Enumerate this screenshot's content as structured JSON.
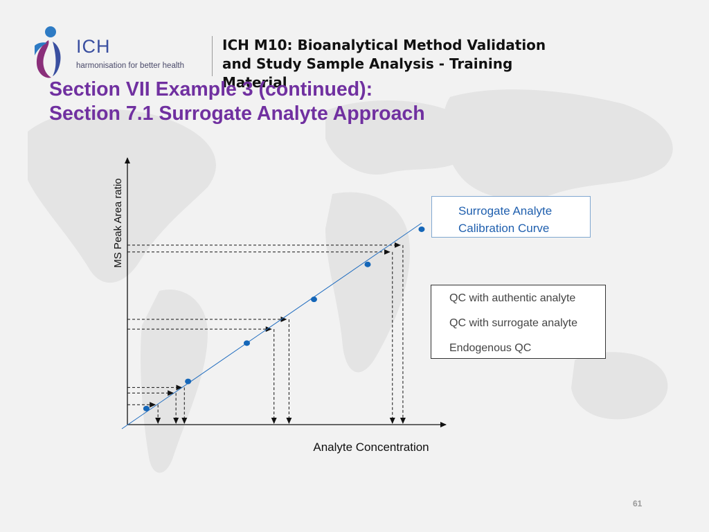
{
  "header": {
    "logo_text": "ICH",
    "logo_tagline": "harmonisation for better health",
    "title": "ICH M10: Bioanalytical Method Validation and Study Sample Analysis - Training Material"
  },
  "section": {
    "line1": "Section VII Example 3 (continued):",
    "line2": "Section 7.1 Surrogate Analyte Approach"
  },
  "legend": {
    "calibration_label": "Surrogate Analyte Calibration Curve",
    "qc_items": [
      "QC with authentic analyte",
      "QC with surrogate analyte",
      "Endogenous QC"
    ]
  },
  "page_number": "61",
  "colors": {
    "accent_purple": "#7030a0",
    "curve_blue": "#1f6cbf",
    "dot_blue": "#1466b8"
  },
  "chart_data": {
    "type": "line",
    "title": "",
    "xlabel": "Analyte Concentration",
    "ylabel": "MS Peak Area ratio",
    "xlim": [
      0,
      1
    ],
    "ylim": [
      0,
      1
    ],
    "ticks": "none",
    "grid": false,
    "series": [
      {
        "name": "Surrogate Analyte Calibration Curve",
        "style": "line-with-points",
        "line": {
          "x": [
            0,
            1
          ],
          "y": [
            0,
            1
          ]
        },
        "points": {
          "x": [
            0.068,
            0.207,
            0.403,
            0.627,
            0.806,
            0.986
          ],
          "y": [
            0.068,
            0.207,
            0.403,
            0.627,
            0.806,
            0.986
          ]
        }
      }
    ],
    "qc_projections": [
      {
        "x": 0.102,
        "y": 0.102
      },
      {
        "x": 0.162,
        "y": 0.162
      },
      {
        "x": 0.19,
        "y": 0.19
      },
      {
        "x": 0.489,
        "y": 0.489
      },
      {
        "x": 0.539,
        "y": 0.539
      },
      {
        "x": 0.884,
        "y": 0.884
      },
      {
        "x": 0.919,
        "y": 0.919
      }
    ]
  }
}
